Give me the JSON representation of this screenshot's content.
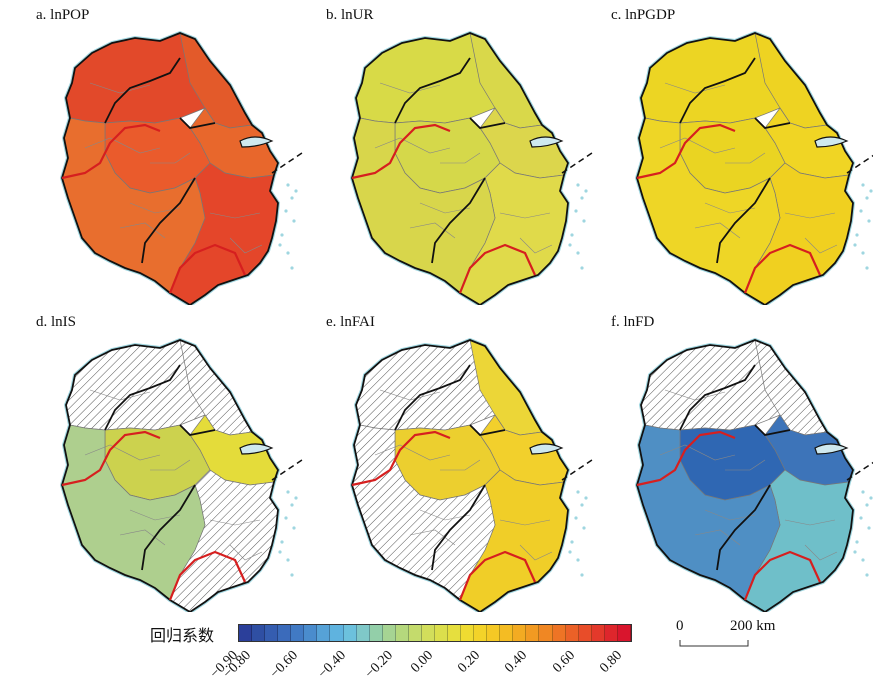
{
  "panels": [
    {
      "label": "a. lnPOP",
      "fills": [
        "#e2492a",
        "#e35a2a",
        "#e8672c",
        "#ea5b2c",
        "#e4462a",
        "#e86e2e"
      ],
      "coef": [
        0.73,
        0.7,
        0.66,
        0.69,
        0.75,
        0.64
      ]
    },
    {
      "label": "b. lnUR",
      "fills": [
        "#d8da47",
        "#d9d84a",
        "#dcd64c",
        "#d5d84a",
        "#e0da4a",
        "#d8d64b"
      ],
      "coef": [
        0.08,
        0.08,
        0.09,
        0.07,
        0.09,
        0.08
      ]
    },
    {
      "label": "c. lnPGDP",
      "fills": [
        "#ecd523",
        "#eed322",
        "#f0d524",
        "#ead422",
        "#f0d020",
        "#eed626"
      ],
      "coef": [
        0.27,
        0.27,
        0.28,
        0.27,
        0.29,
        0.27
      ]
    },
    {
      "label": "d. lnIS",
      "fills": [
        "hatch",
        "hatch",
        "#e4dc3a",
        "#ccd24e",
        "hatch",
        "#aecf8e"
      ],
      "coef": [
        null,
        null,
        0.22,
        0.05,
        null,
        -0.12
      ]
    },
    {
      "label": "e. lnFAI",
      "fills": [
        "hatch",
        "#ecd637",
        "#f2d02c",
        "#eccf2f",
        "#f0ce28",
        "hatch"
      ],
      "coef": [
        null,
        0.24,
        0.31,
        0.27,
        0.33,
        null
      ]
    },
    {
      "label": "f. lnFD",
      "fills": [
        "hatch",
        "hatch",
        "#3d74b9",
        "#2f67b3",
        "#6fbfc9",
        "#4f8fc4"
      ],
      "coef": [
        null,
        null,
        -0.72,
        -0.78,
        -0.42,
        -0.64
      ]
    }
  ],
  "legend": {
    "title": "回归系数",
    "ticks": [
      "−0.90",
      "−0.80",
      "−0.60",
      "−0.40",
      "−0.20",
      "0.00",
      "0.20",
      "0.40",
      "0.60",
      "0.80"
    ],
    "colors": [
      "#2b3f9a",
      "#2f4fa3",
      "#355db0",
      "#3b6bbb",
      "#417ac4",
      "#4a8ccd",
      "#56a2d7",
      "#5fb3df",
      "#6cc1dd",
      "#7fc8c8",
      "#93cfa9",
      "#a6d493",
      "#b5d87d",
      "#c4db6c",
      "#d2de5b",
      "#dcdf4c",
      "#e6df3e",
      "#efdb31",
      "#f3d329",
      "#f5c925",
      "#f4bc23",
      "#f3ab22",
      "#f29a22",
      "#f08723",
      "#ee7425",
      "#eb6127",
      "#e84d29",
      "#e3392b",
      "#de262c",
      "#d9152d"
    ]
  },
  "scale": {
    "zero": "0",
    "end": "200 km"
  }
}
